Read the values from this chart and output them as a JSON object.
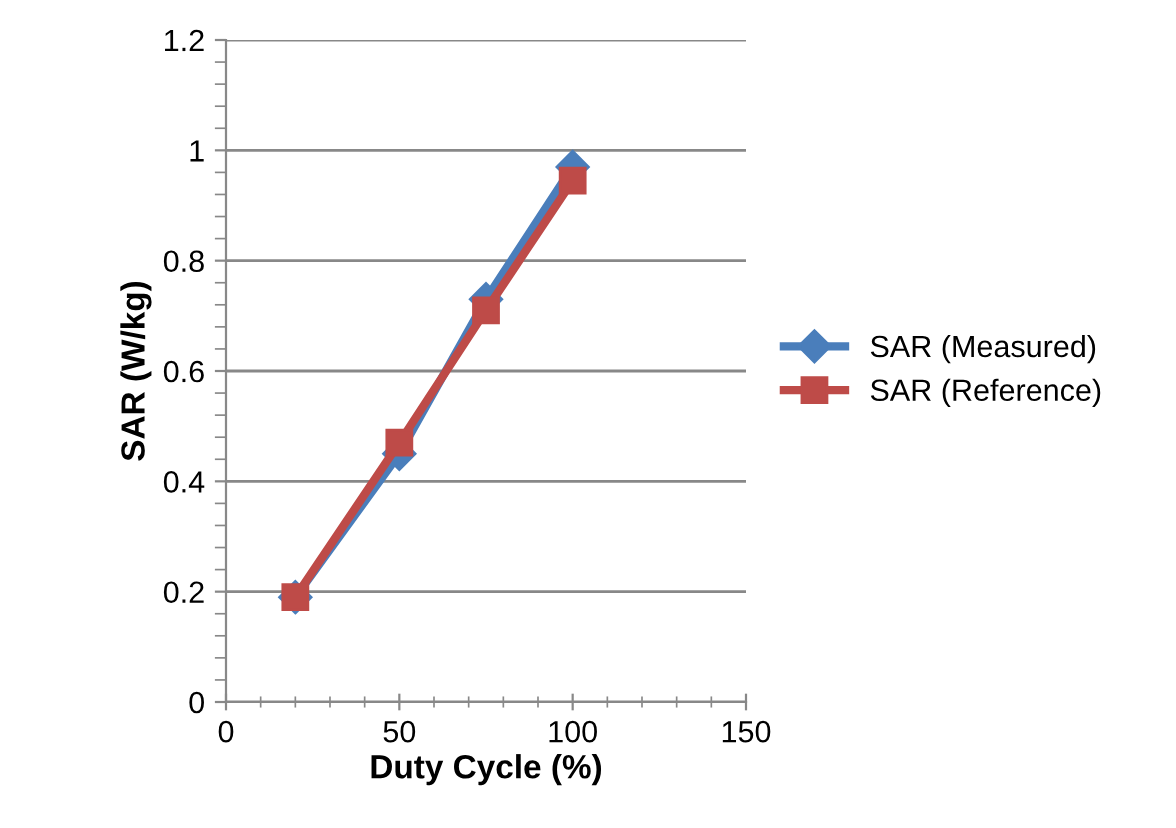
{
  "chart_data": {
    "type": "line",
    "xlabel": "Duty Cycle (%)",
    "ylabel": "SAR (W/kg)",
    "x": [
      20,
      50,
      75,
      100
    ],
    "series": [
      {
        "name": "SAR (Measured)",
        "color": "#4a7ebb",
        "values": [
          0.19,
          0.45,
          0.73,
          0.97
        ],
        "marker": "diamond"
      },
      {
        "name": "SAR (Reference)",
        "color": "#be4b48",
        "values": [
          0.19,
          0.47,
          0.71,
          0.945
        ],
        "marker": "square"
      }
    ],
    "xlim": [
      0,
      150
    ],
    "xticks": [
      0,
      50,
      100,
      150
    ],
    "ylim": [
      0,
      1.2
    ],
    "yticks": [
      0,
      0.2,
      0.4,
      0.6,
      0.8,
      1,
      1.2
    ],
    "grid": "y",
    "legend": "right"
  }
}
